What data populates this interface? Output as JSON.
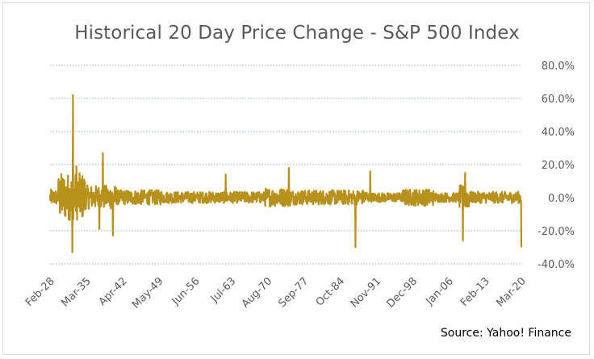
{
  "chart_data": {
    "type": "line",
    "title": "Historical 20 Day Price Change - S&P 500 Index",
    "source": "Source: Yahoo! Finance",
    "series_color": "#b8901c",
    "grid_color": "#8eaadb",
    "y_axis_position": "right",
    "ylim": [
      -0.4,
      0.8
    ],
    "y_ticks": [
      -0.4,
      -0.2,
      0.0,
      0.2,
      0.4,
      0.6,
      0.8
    ],
    "y_tick_labels": [
      "-40.0%",
      "-20.0%",
      "0.0%",
      "20.0%",
      "40.0%",
      "60.0%",
      "80.0%"
    ],
    "x_tick_labels": [
      "Feb-28",
      "Mar-35",
      "Apr-42",
      "May-49",
      "Jun-56",
      "Jul-63",
      "Aug-70",
      "Sep-77",
      "Oct-84",
      "Nov-91",
      "Dec-98",
      "Jan-06",
      "Feb-13",
      "Mar-20"
    ],
    "x_range": [
      "1928-02",
      "2020-03"
    ],
    "notable_points": [
      {
        "x": "1932-08",
        "y": 0.62
      },
      {
        "x": "1932-06",
        "y": -0.33
      },
      {
        "x": "1933-04",
        "y": 0.19
      },
      {
        "x": "1938-06",
        "y": 0.27
      },
      {
        "x": "1937-10",
        "y": -0.19
      },
      {
        "x": "1940-05",
        "y": -0.23
      },
      {
        "x": "1962-06",
        "y": 0.14
      },
      {
        "x": "1974-10",
        "y": 0.18
      },
      {
        "x": "1987-10",
        "y": -0.3
      },
      {
        "x": "1990-09",
        "y": 0.16
      },
      {
        "x": "2008-10",
        "y": -0.26
      },
      {
        "x": "2009-03",
        "y": 0.15
      },
      {
        "x": "2020-03",
        "y": -0.3
      }
    ],
    "grid": true
  }
}
